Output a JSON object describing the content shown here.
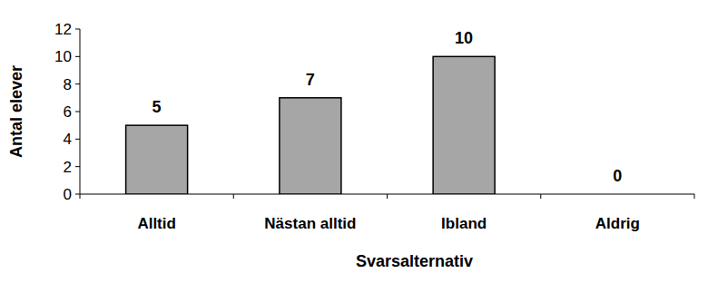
{
  "chart_data": {
    "type": "bar",
    "x_label": "Svarsalternativ",
    "y_label": "Antal elever",
    "categories": [
      "Alltid",
      "Nästan alltid",
      "Ibland",
      "Aldrig"
    ],
    "values": [
      5,
      7,
      10,
      0
    ],
    "color": "#a6a6a6",
    "ylim": [
      0,
      12
    ],
    "yticks": [
      0,
      2,
      4,
      6,
      8,
      10,
      12
    ],
    "grid": false,
    "data_labels": true
  }
}
